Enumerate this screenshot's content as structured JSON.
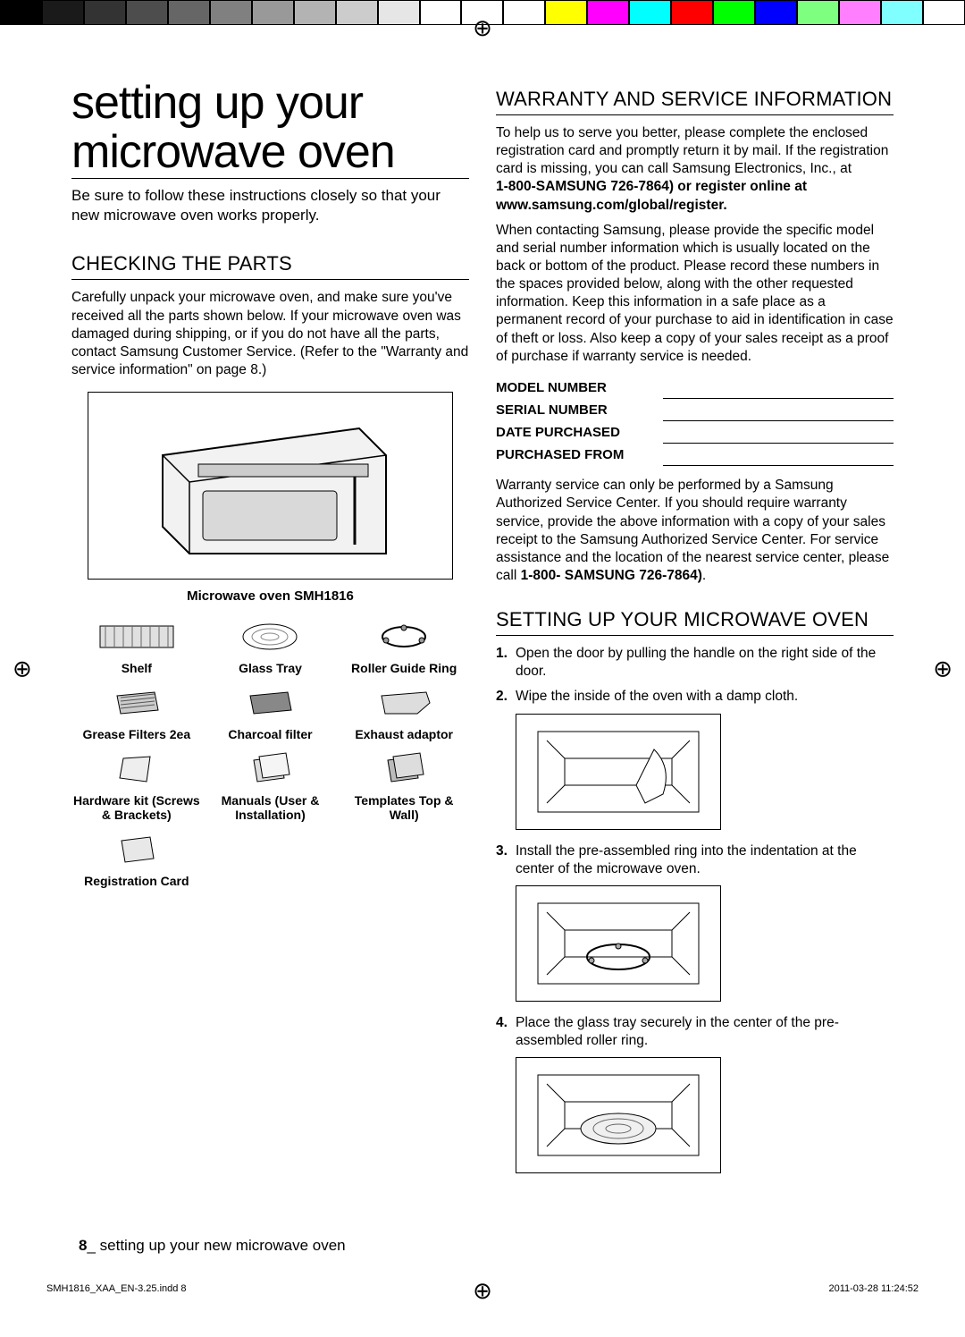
{
  "color_bar": {
    "top": [
      "#000000",
      "#1a1a1a",
      "#333333",
      "#4d4d4d",
      "#666666",
      "#808080",
      "#999999",
      "#b3b3b3",
      "#cccccc",
      "#e6e6e6",
      "#ffffff",
      "#ffffff",
      "#ffffff",
      "#ffff00",
      "#ff00ff",
      "#00ffff",
      "#ff0000",
      "#00ff00",
      "#0000ff",
      "#7fff7f",
      "#ff7fff",
      "#7fffff",
      "#ffffff"
    ]
  },
  "title": "setting up your microwave oven",
  "intro": "Be sure to follow these instructions closely so that your new microwave oven works properly.",
  "checking": {
    "heading": "CHECKING THE PARTS",
    "body": "Carefully unpack your microwave oven, and make sure you've received all the parts shown below. If your microwave oven was damaged during shipping, or if you do not have all the parts, contact Samsung Customer Service. (Refer to the \"Warranty and service information\" on page 8.)",
    "main_caption": "Microwave oven SMH1816",
    "parts": [
      {
        "label": "Shelf"
      },
      {
        "label": "Glass Tray"
      },
      {
        "label": "Roller Guide Ring"
      },
      {
        "label": "Grease Filters 2ea"
      },
      {
        "label": "Charcoal filter"
      },
      {
        "label": "Exhaust adaptor"
      },
      {
        "label": "Hardware kit (Screws & Brackets)"
      },
      {
        "label": "Manuals (User & Installation)"
      },
      {
        "label": "Templates Top & Wall)"
      },
      {
        "label": "Registration Card"
      }
    ]
  },
  "warranty": {
    "heading": "WARRANTY AND SERVICE INFORMATION",
    "p1": "To help us to serve you better, please complete the enclosed registration card and promptly return it by mail. If the registration card is missing, you can call Samsung Electronics, Inc., at",
    "p1b": "1-800-SAMSUNG 726-7864) or register online at www.samsung.com/global/register.",
    "p2": "When contacting Samsung, please provide the specific model and serial number information which is usually located on the back or bottom of the product. Please record these numbers in the spaces provided below, along with the other requested information. Keep this information in a safe place as a permanent record of your purchase to aid in identification in case of theft or loss. Also keep a copy of your sales receipt as a proof of purchase if warranty service is needed.",
    "fields": [
      "MODEL NUMBER",
      "SERIAL NUMBER",
      "DATE PURCHASED",
      "PURCHASED FROM"
    ],
    "p3a": "Warranty service can only be performed by a Samsung Authorized Service Center. If you should require warranty service, provide the above information with a copy of your sales receipt to the Samsung Authorized Service Center. For service assistance and the location of the nearest service center, please call ",
    "p3b": "1-800- SAMSUNG 726-7864)",
    "p3c": "."
  },
  "setup": {
    "heading": "SETTING UP YOUR MICROWAVE OVEN",
    "steps": [
      "Open the door by pulling the handle on the right side of the door.",
      "Wipe the inside of the oven with a damp cloth.",
      "Install the pre-assembled ring into the indentation at the center of the microwave oven.",
      "Place the glass tray securely in the center of the pre-assembled roller ring."
    ]
  },
  "footer": {
    "page_num": "8",
    "sep": "_",
    "text": " setting up your new microwave oven"
  },
  "meta": {
    "left": "SMH1816_XAA_EN-3.25.indd   8",
    "right": "2011-03-28     11:24:52"
  }
}
